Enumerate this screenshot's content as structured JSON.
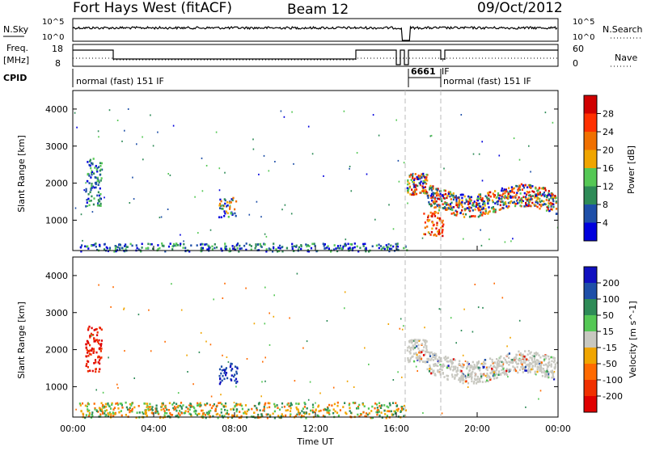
{
  "header": {
    "radar": "Fort Hays West (fitACF)",
    "beam": "Beam 12",
    "date": "09/Oct/2012"
  },
  "sky_panel": {
    "left_label": "N.Sky",
    "right_label": "N.Search",
    "ticks": [
      "10^5",
      "10^0"
    ]
  },
  "freq_panel": {
    "left_label_top": "Freq.",
    "left_label_bottom": "[MHz]",
    "right_label": "Nave",
    "left_ticks": [
      "18",
      "8"
    ],
    "right_ticks": [
      "60",
      "0"
    ]
  },
  "cpid": {
    "label": "CPID",
    "segments": [
      {
        "text": "normal (fast) 151 IF",
        "start_hour": 0
      },
      {
        "text": "6661",
        "start_hour": 16.6
      },
      {
        "text": "IF",
        "start_hour": 18.0
      },
      {
        "text": "normal (fast) 151 IF",
        "start_hour": 18.0
      }
    ]
  },
  "colors": {
    "power_scale": [
      "#0000dd",
      "#1e4fa8",
      "#2e8b57",
      "#55c855",
      "#f0a500",
      "#f07000",
      "#ff3000",
      "#d00000"
    ],
    "velocity_scale": [
      "#e00000",
      "#f03000",
      "#ff6a00",
      "#f0a500",
      "#c8c8c0",
      "#55c855",
      "#2e8b57",
      "#1e4fa8",
      "#1010c0"
    ]
  },
  "chart_data": [
    {
      "type": "heatmap",
      "panel": "power",
      "ylabel": "Slant Range [km]",
      "ylim": [
        180,
        4500
      ],
      "yticks": [
        1000,
        2000,
        3000,
        4000
      ],
      "colorbar": {
        "label": "Power [dB]",
        "ticks": [
          "4",
          "8",
          "12",
          "16",
          "20",
          "24",
          "28"
        ]
      },
      "regions": [
        {
          "t": [
            0.6,
            1.4
          ],
          "r": [
            1400,
            2700
          ],
          "level": "mixed-low"
        },
        {
          "t": [
            7.2,
            8.1
          ],
          "r": [
            1100,
            1650
          ],
          "level": "mixed"
        },
        {
          "t": [
            0.3,
            16.5
          ],
          "r": [
            180,
            400
          ],
          "level": "mixed-low"
        },
        {
          "t": [
            16.5,
            23.9
          ],
          "r": [
            1300,
            2400
          ],
          "level": "mixed-high"
        },
        {
          "t": [
            17.3,
            18.3
          ],
          "r": [
            600,
            1300
          ],
          "level": "high"
        }
      ]
    },
    {
      "type": "heatmap",
      "panel": "velocity",
      "ylabel": "Slant Range [km]",
      "xlabel": "Time UT",
      "ylim": [
        180,
        4500
      ],
      "yticks": [
        1000,
        2000,
        3000,
        4000
      ],
      "xticks": [
        "00:00",
        "04:00",
        "08:00",
        "12:00",
        "16:00",
        "20:00",
        "00:00"
      ],
      "colorbar": {
        "label": "Velocity [m s^-1]",
        "ticks": [
          "-200",
          "-100",
          "-50",
          "-15",
          "15",
          "50",
          "100",
          "200"
        ]
      },
      "regions": [
        {
          "t": [
            0.6,
            1.4
          ],
          "r": [
            1400,
            2700
          ],
          "level": "negative-high"
        },
        {
          "t": [
            7.2,
            8.1
          ],
          "r": [
            1100,
            1650
          ],
          "level": "positive-high"
        },
        {
          "t": [
            0.3,
            16.5
          ],
          "r": [
            180,
            600
          ],
          "level": "small-mixed"
        },
        {
          "t": [
            16.5,
            23.9
          ],
          "r": [
            1300,
            2400
          ],
          "level": "near-zero"
        }
      ]
    }
  ]
}
